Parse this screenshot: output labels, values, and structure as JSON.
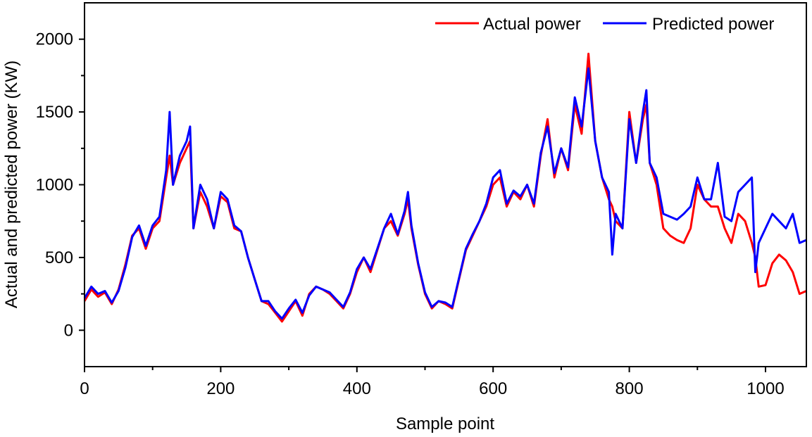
{
  "chart_data": {
    "type": "line",
    "title": "",
    "xlabel": "Sample point",
    "ylabel": "Actual and predicted power (KW)",
    "xlim": [
      0,
      1060
    ],
    "ylim": [
      -250,
      2250
    ],
    "x_ticks": [
      0,
      200,
      400,
      600,
      800,
      1000
    ],
    "y_ticks": [
      0,
      500,
      1000,
      1500,
      2000
    ],
    "grid": false,
    "legend": "top-right",
    "x": [
      0,
      10,
      20,
      30,
      40,
      50,
      60,
      70,
      80,
      90,
      100,
      110,
      120,
      125,
      130,
      140,
      150,
      155,
      160,
      170,
      180,
      190,
      200,
      210,
      220,
      230,
      240,
      250,
      260,
      270,
      280,
      290,
      300,
      310,
      320,
      330,
      340,
      350,
      360,
      370,
      380,
      390,
      400,
      410,
      420,
      430,
      440,
      450,
      460,
      470,
      475,
      480,
      490,
      500,
      510,
      520,
      530,
      540,
      550,
      560,
      570,
      580,
      590,
      600,
      610,
      620,
      630,
      640,
      650,
      660,
      670,
      680,
      690,
      700,
      710,
      720,
      730,
      740,
      750,
      760,
      770,
      775,
      780,
      790,
      800,
      810,
      820,
      825,
      830,
      840,
      850,
      860,
      870,
      880,
      890,
      900,
      910,
      920,
      930,
      940,
      950,
      960,
      970,
      980,
      985,
      990,
      1000,
      1010,
      1020,
      1030,
      1040,
      1050,
      1060
    ],
    "series": [
      {
        "name": "Actual power",
        "color": "#ff0000",
        "values": [
          200,
          280,
          230,
          260,
          180,
          280,
          450,
          650,
          700,
          560,
          700,
          750,
          1050,
          1200,
          1000,
          1150,
          1250,
          1300,
          700,
          950,
          850,
          700,
          920,
          880,
          700,
          680,
          500,
          350,
          200,
          180,
          120,
          60,
          130,
          200,
          100,
          250,
          300,
          280,
          250,
          200,
          150,
          250,
          400,
          500,
          400,
          550,
          700,
          750,
          650,
          800,
          900,
          700,
          450,
          250,
          150,
          200,
          180,
          150,
          350,
          550,
          650,
          750,
          850,
          1000,
          1050,
          850,
          950,
          900,
          1000,
          850,
          1200,
          1450,
          1050,
          1250,
          1100,
          1550,
          1350,
          1900,
          1300,
          1050,
          900,
          850,
          750,
          700,
          1500,
          1150,
          1450,
          1550,
          1150,
          1000,
          700,
          650,
          620,
          600,
          700,
          1000,
          900,
          850,
          850,
          700,
          600,
          800,
          750,
          600,
          500,
          300,
          310,
          460,
          520,
          480,
          400,
          250,
          270
        ]
      },
      {
        "name": "Predicted power",
        "color": "#0000ff",
        "values": [
          220,
          300,
          250,
          270,
          190,
          270,
          430,
          640,
          720,
          580,
          720,
          780,
          1100,
          1500,
          1000,
          1200,
          1300,
          1400,
          700,
          1000,
          900,
          700,
          950,
          900,
          720,
          680,
          500,
          350,
          200,
          200,
          130,
          80,
          150,
          210,
          120,
          240,
          300,
          280,
          260,
          210,
          160,
          260,
          420,
          500,
          420,
          560,
          700,
          800,
          660,
          820,
          950,
          720,
          460,
          260,
          160,
          200,
          190,
          160,
          360,
          560,
          660,
          750,
          870,
          1050,
          1100,
          870,
          960,
          920,
          1000,
          870,
          1220,
          1400,
          1080,
          1250,
          1120,
          1600,
          1400,
          1800,
          1300,
          1050,
          950,
          520,
          800,
          700,
          1450,
          1150,
          1500,
          1650,
          1150,
          1050,
          800,
          780,
          760,
          800,
          850,
          1050,
          900,
          900,
          1150,
          780,
          750,
          950,
          1000,
          1050,
          400,
          600,
          700,
          800,
          750,
          700,
          800,
          600,
          620
        ]
      }
    ]
  }
}
